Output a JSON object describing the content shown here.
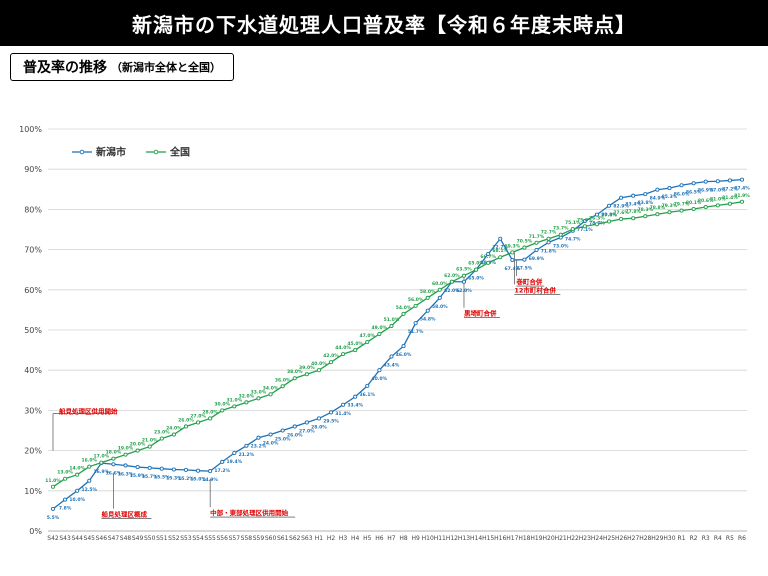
{
  "header": {
    "title": "新潟市の下水道処理人口普及率【令和６年度末時点】"
  },
  "subtitle": {
    "main": "普及率の推移",
    "sub": "（新潟市全体と全国）"
  },
  "colors": {
    "niigata": "#1f72b6",
    "national": "#22a04b",
    "annotation": "#e00000",
    "grid": "#d4d4d4"
  },
  "chart_data": {
    "type": "line",
    "ylim": [
      0,
      100
    ],
    "yticks": [
      "0%",
      "10%",
      "20%",
      "30%",
      "40%",
      "50%",
      "60%",
      "70%",
      "80%",
      "90%",
      "100%"
    ],
    "grid": true,
    "legend": "top-left",
    "categories": [
      "S42",
      "S43",
      "S44",
      "S45",
      "S46",
      "S47",
      "S48",
      "S49",
      "S50",
      "S51",
      "S52",
      "S53",
      "S54",
      "S55",
      "S56",
      "S57",
      "S58",
      "S59",
      "S60",
      "S61",
      "S62",
      "S63",
      "H1",
      "H2",
      "H3",
      "H4",
      "H5",
      "H6",
      "H7",
      "H8",
      "H9",
      "H10",
      "H11",
      "H12",
      "H13",
      "H14",
      "H15",
      "H16",
      "H17",
      "H18",
      "H19",
      "H20",
      "H21",
      "H22",
      "H23",
      "H24",
      "H25",
      "H26",
      "H27",
      "H28",
      "H29",
      "H30",
      "R1",
      "R2",
      "R3",
      "R4",
      "R5",
      "R6"
    ],
    "series": [
      {
        "name": "新潟市",
        "values": [
          5.5,
          7.8,
          10.0,
          12.5,
          16.9,
          16.6,
          16.3,
          15.9,
          15.7,
          15.5,
          15.3,
          15.2,
          15.0,
          14.9,
          17.2,
          19.4,
          21.2,
          23.2,
          24.0,
          25.0,
          26.0,
          27.0,
          28.0,
          29.5,
          31.4,
          33.4,
          36.1,
          40.0,
          43.4,
          46.0,
          51.7,
          54.8,
          58.0,
          62.0,
          62.0,
          65.0,
          68.9,
          72.7,
          67.4,
          67.5,
          69.9,
          71.8,
          73.0,
          74.7,
          77.1,
          78.7,
          80.9,
          82.9,
          83.4,
          83.8,
          84.9,
          85.3,
          86.0,
          86.5,
          86.9,
          87.0,
          87.2,
          87.4
        ],
        "labels": [
          "5.5%",
          "7.8%",
          "10.0%",
          "12.5%",
          "16.9%",
          "16.6%",
          "16.3%",
          "15.9%",
          "15.7%",
          "15.5%",
          "15.3%",
          "15.2%",
          "15.0%",
          "14.9%",
          "17.2%",
          "19.4%",
          "21.2%",
          "23.2%",
          "24.0%",
          "25.0%",
          "26.0%",
          "27.0%",
          "28.0%",
          "29.5%",
          "31.4%",
          "33.4%",
          "36.1%",
          "40.0%",
          "43.4%",
          "46.0%",
          "51.7%",
          "54.8%",
          "58.0%",
          "62.0%",
          "62.0%",
          "65.0%",
          "68.9%",
          "72.7%",
          "67.4%",
          "67.5%",
          "69.9%",
          "71.8%",
          "73.0%",
          "74.7%",
          "77.1%",
          "78.7%",
          "80.9%",
          "82.9%",
          "83.4%",
          "83.8%",
          "84.9%",
          "85.3%",
          "86.0%",
          "86.5%",
          "86.9%",
          "87.0%",
          "87.2%",
          "87.4%"
        ]
      },
      {
        "name": "全国",
        "values": [
          11.0,
          13.0,
          14.0,
          16.0,
          17.0,
          18.0,
          19.0,
          20.0,
          21.0,
          23.0,
          24.0,
          26.0,
          27.0,
          28.0,
          30.0,
          31.0,
          32.0,
          33.0,
          34.0,
          36.0,
          38.0,
          39.0,
          40.0,
          42.0,
          44.0,
          45.0,
          47.0,
          49.0,
          51.0,
          54.0,
          56.0,
          58.0,
          60.0,
          62.0,
          63.5,
          65.0,
          66.7,
          68.1,
          69.3,
          70.5,
          71.7,
          72.7,
          73.7,
          75.1,
          75.8,
          76.3,
          77.0,
          77.6,
          77.8,
          78.3,
          78.8,
          79.3,
          79.7,
          80.1,
          80.6,
          81.0,
          81.4,
          81.9
        ],
        "labels": [
          "11.0%",
          "13.0%",
          "14.0%",
          "16.0%",
          "17.0%",
          "18.0%",
          "19.0%",
          "20.0%",
          "21.0%",
          "23.0%",
          "24.0%",
          "26.0%",
          "27.0%",
          "28.0%",
          "30.0%",
          "31.0%",
          "32.0%",
          "33.0%",
          "34.0%",
          "36.0%",
          "38.0%",
          "39.0%",
          "40.0%",
          "42.0%",
          "44.0%",
          "45.0%",
          "47.0%",
          "49.0%",
          "51.0%",
          "54.0%",
          "56.0%",
          "58.0%",
          "60.0%",
          "62.0%",
          "63.5%",
          "65.0%",
          "66.7%",
          "68.1%",
          "69.3%",
          "70.5%",
          "71.7%",
          "72.7%",
          "73.7%",
          "75.1%",
          "75.8%",
          "76.3%",
          "77.0%",
          "77.6%",
          "77.8%",
          "78.3%",
          "78.8%",
          "79.3%",
          "79.7%",
          "80.1%",
          "80.6%",
          "81.0%",
          "81.4%",
          "81.9%"
        ]
      }
    ],
    "annotations": [
      {
        "text": "船見処理区供用開始",
        "category": "S42"
      },
      {
        "text": "船見処理区概成",
        "category": "S47"
      },
      {
        "text": "中部・東部処理区供用開始",
        "category": "S55"
      },
      {
        "text": "黒埼町合併",
        "category": "H13"
      },
      {
        "text": "12市町村合併",
        "category": "H17"
      },
      {
        "text": "巻町合併",
        "category": "H17"
      }
    ]
  }
}
